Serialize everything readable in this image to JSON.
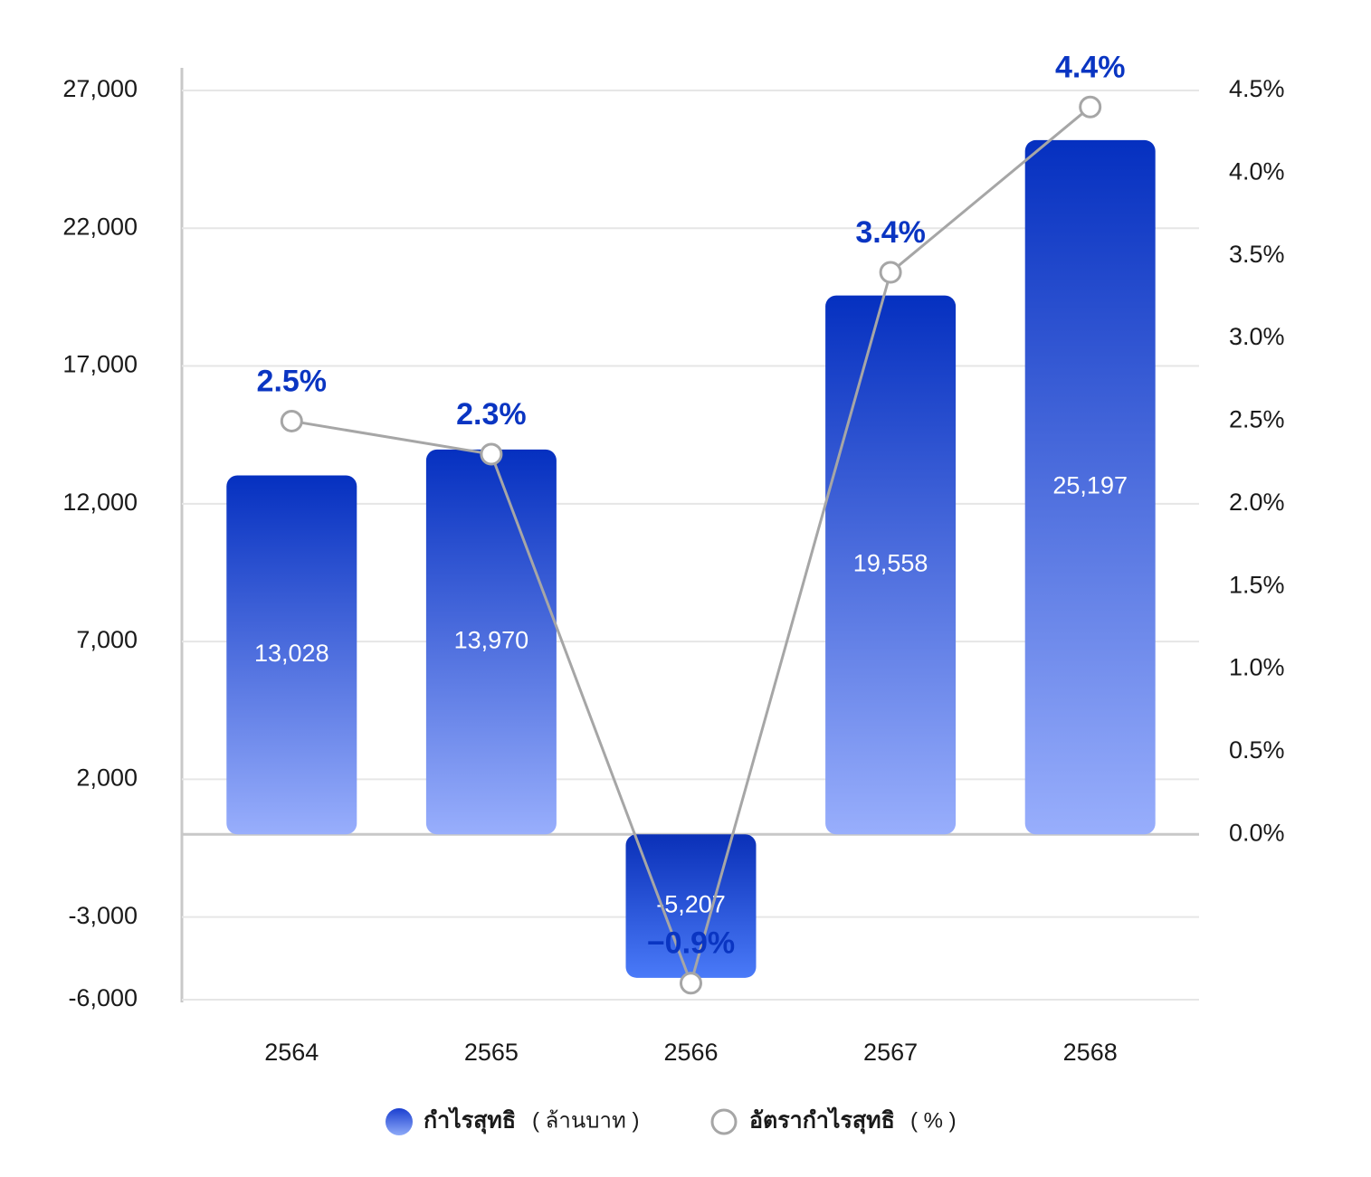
{
  "chart_data": {
    "type": "bar_line",
    "categories": [
      "2564",
      "2565",
      "2566",
      "2567",
      "2568"
    ],
    "series": [
      {
        "name": "กำไรสุทธิ",
        "unit": "( ล้านบาท )",
        "type": "bar",
        "color": "#0a35c2",
        "values": [
          13028,
          13970,
          -5207,
          19558,
          25197
        ],
        "value_labels": [
          "13,028",
          "13,970",
          "-5,207",
          "19,558",
          "25,197"
        ]
      },
      {
        "name": "อัตรากำไรสุทธิ",
        "unit": "( % )",
        "type": "line",
        "axis": "y2",
        "color": "#a6a6a6",
        "values": [
          2.5,
          2.3,
          -0.9,
          3.4,
          4.4
        ],
        "value_labels": [
          "2.5%",
          "2.3%",
          "−0.9%",
          "3.4%",
          "4.4%"
        ]
      }
    ],
    "ylim": [
      -6000,
      27000
    ],
    "yticks": [
      {
        "value": 27000,
        "label": "27,000"
      },
      {
        "value": 22000,
        "label": "22,000"
      },
      {
        "value": 17000,
        "label": "17,000"
      },
      {
        "value": 12000,
        "label": "12,000"
      },
      {
        "value": 7000,
        "label": "7,000"
      },
      {
        "value": 2000,
        "label": "2,000"
      },
      {
        "value": -3000,
        "label": "-3,000"
      },
      {
        "value": -6000,
        "label": "-6,000"
      }
    ],
    "y2lim": [
      -1,
      4.5
    ],
    "y2ticks": [
      {
        "value": 4.5,
        "label": "4.5%"
      },
      {
        "value": 4.0,
        "label": "4.0%"
      },
      {
        "value": 3.5,
        "label": "3.5%"
      },
      {
        "value": 3.0,
        "label": "3.0%"
      },
      {
        "value": 2.5,
        "label": "2.5%"
      },
      {
        "value": 2.0,
        "label": "2.0%"
      },
      {
        "value": 1.5,
        "label": "1.5%"
      },
      {
        "value": 1.0,
        "label": "1.0%"
      },
      {
        "value": 0.5,
        "label": "0.5%"
      },
      {
        "value": 0.0,
        "label": "0.0%"
      }
    ],
    "grid": true
  }
}
